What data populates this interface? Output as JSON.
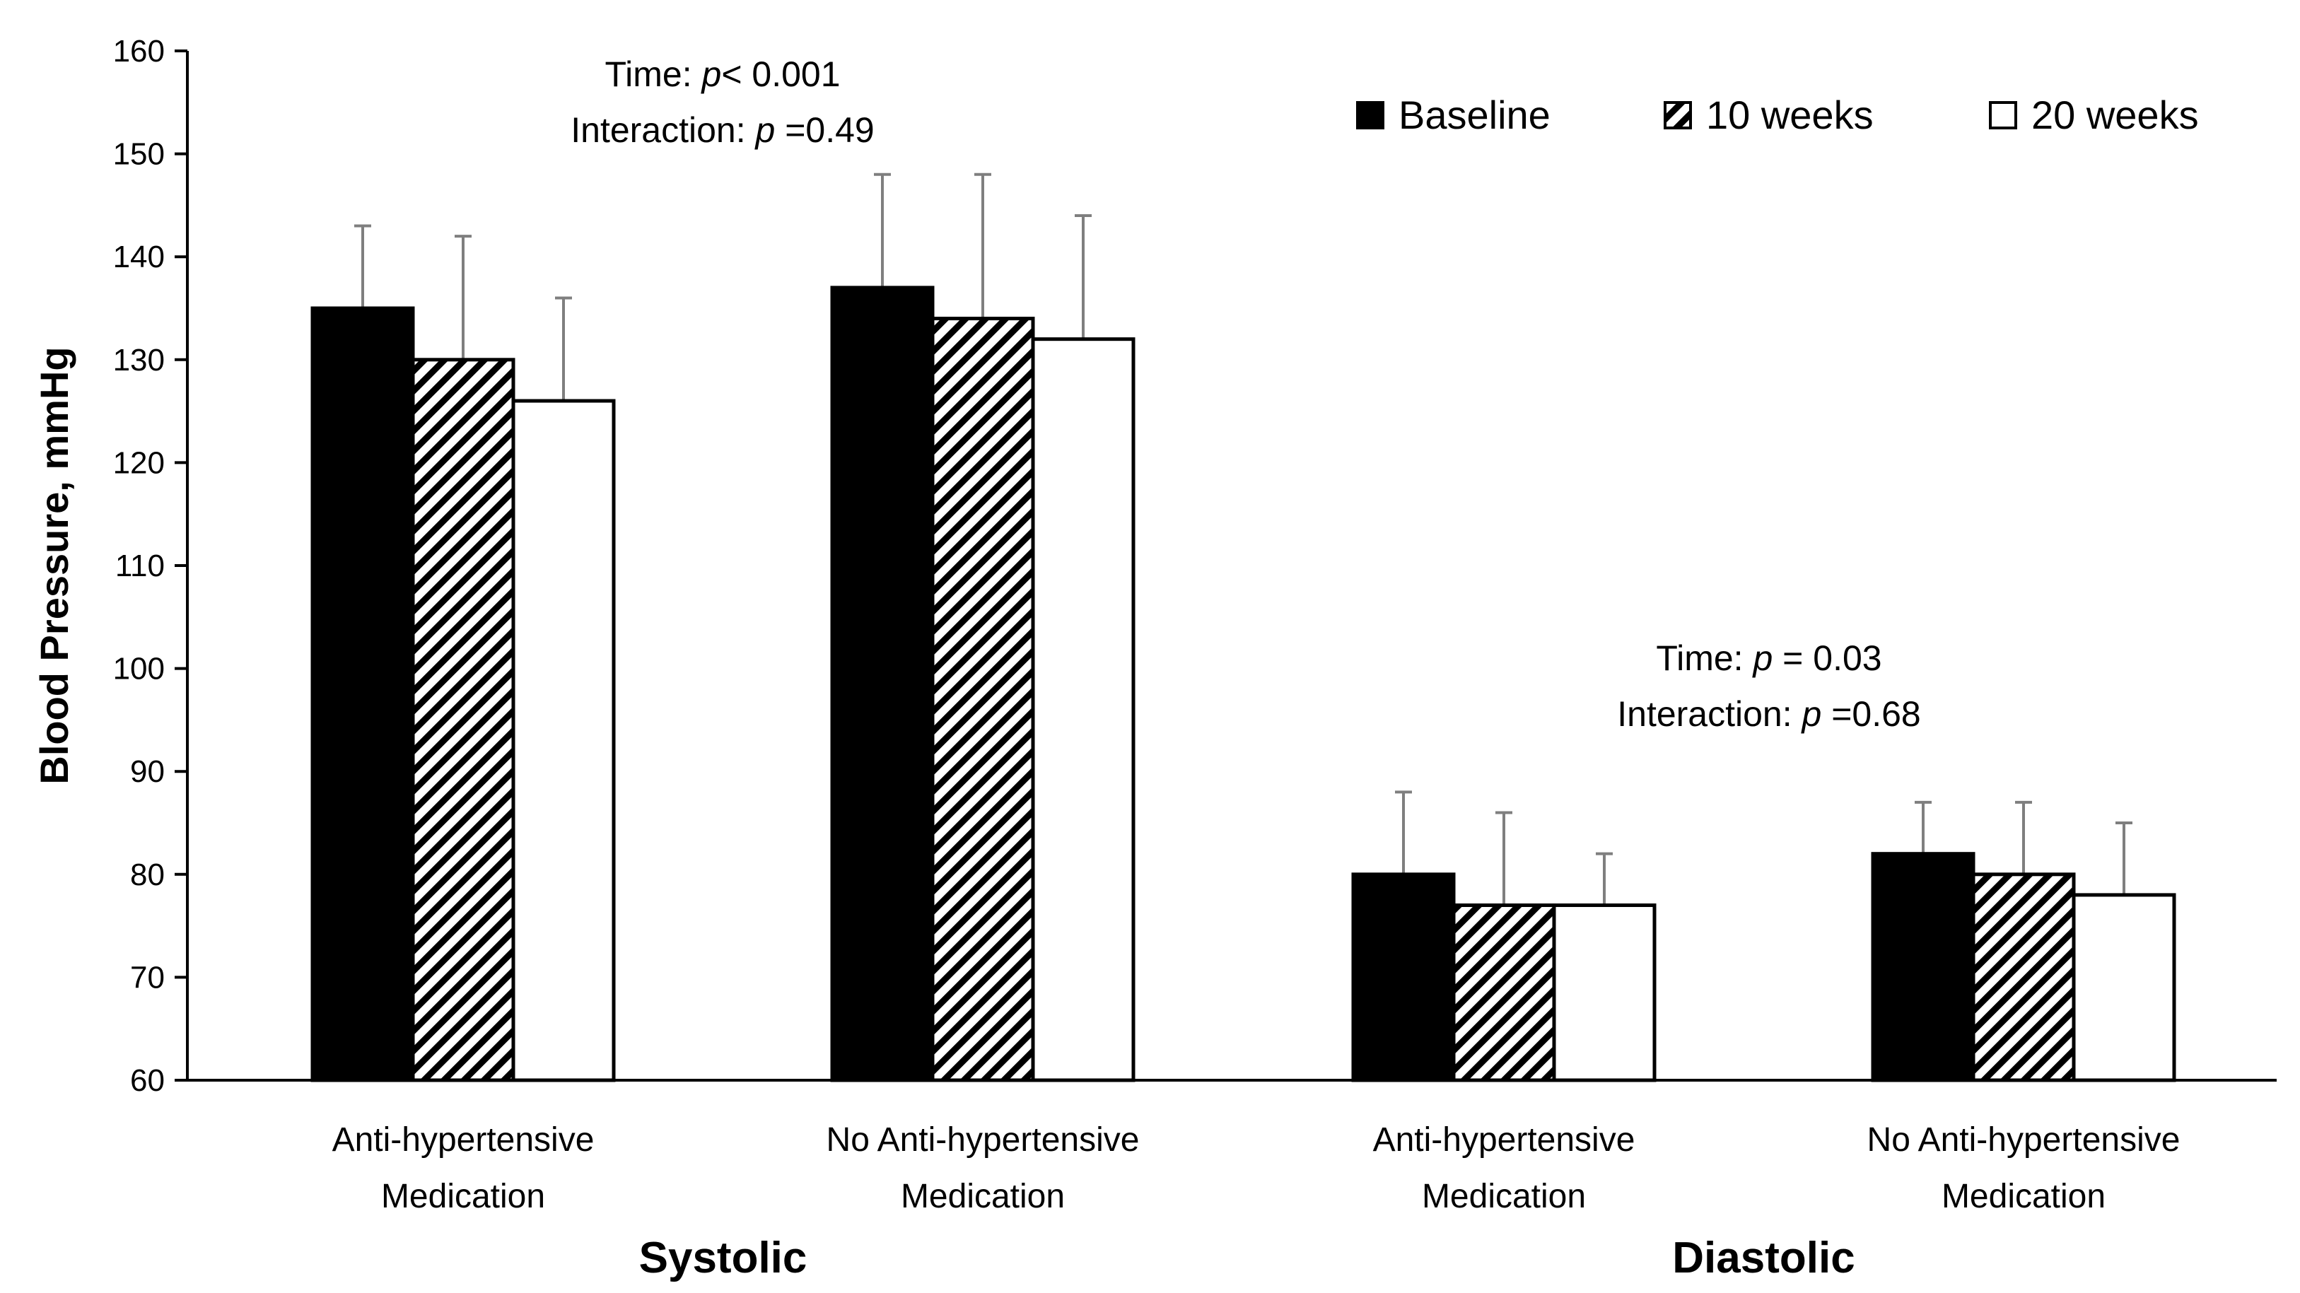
{
  "chart_data": {
    "type": "bar",
    "ylabel": "Blood Pressure, mmHg",
    "ylim": [
      60,
      160
    ],
    "yticks": [
      60,
      70,
      80,
      90,
      100,
      110,
      120,
      130,
      140,
      150,
      160
    ],
    "grid": false,
    "legend_position": "top-right",
    "categories": [
      [
        "Anti-hypertensive",
        "Medication"
      ],
      [
        "No Anti-hypertensive",
        "Medication"
      ],
      [
        "Anti-hypertensive",
        "Medication"
      ],
      [
        "No Anti-hypertensive",
        "Medication"
      ]
    ],
    "groups": [
      {
        "label": "Systolic",
        "categories": [
          0,
          1
        ]
      },
      {
        "label": "Diastolic",
        "categories": [
          2,
          3
        ]
      }
    ],
    "series": [
      {
        "name": "Baseline",
        "fill": "solid",
        "color": "#000000",
        "values": [
          135,
          137,
          80,
          82
        ],
        "errors": [
          8,
          11,
          8,
          5
        ]
      },
      {
        "name": "10 weeks",
        "fill": "hatched",
        "color": "#000000",
        "values": [
          130,
          134,
          77,
          80
        ],
        "errors": [
          12,
          14,
          9,
          7
        ]
      },
      {
        "name": "20 weeks",
        "fill": "white",
        "color": "#ffffff",
        "values": [
          126,
          132,
          77,
          78
        ],
        "errors": [
          10,
          12,
          5,
          7
        ]
      }
    ],
    "annotations": [
      {
        "group": "Systolic",
        "lines": [
          {
            "pre": "Time: ",
            "p": "p",
            "post": "< 0.001"
          },
          {
            "pre": "Interaction: ",
            "p": "p",
            "post": " =0.49"
          }
        ]
      },
      {
        "group": "Diastolic",
        "lines": [
          {
            "pre": "Time: ",
            "p": "p",
            "post": " = 0.03"
          },
          {
            "pre": "Interaction: ",
            "p": "p",
            "post": " =0.68"
          }
        ]
      }
    ]
  }
}
